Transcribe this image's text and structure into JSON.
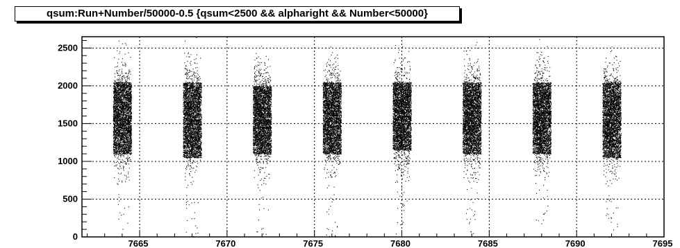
{
  "chart_data": {
    "type": "scatter",
    "title": "qsum:Run+Number/50000-0.5 {qsum<2500 && alpharight && Number<50000}",
    "xlabel": "",
    "ylabel": "",
    "xlim": [
      7661.7,
      7695
    ],
    "ylim": [
      0,
      2650
    ],
    "grid": true,
    "x_ticks": [
      7665,
      7670,
      7675,
      7680,
      7685,
      7690,
      7695
    ],
    "y_ticks": [
      0,
      500,
      1000,
      1500,
      2000,
      2500
    ],
    "x_tick_labels": [
      "7665",
      "7670",
      "7675",
      "7680",
      "7685",
      "7690",
      "7695"
    ],
    "y_tick_labels": [
      "0",
      "500",
      "1000",
      "1500",
      "2000",
      "2500"
    ],
    "marker_color": "#000000",
    "series": [
      {
        "clusters": [
          {
            "x_min": 7663.5,
            "x_max": 7664.5,
            "y_core_min": 1100,
            "y_core_max": 2050,
            "y_center": 1600
          },
          {
            "x_min": 7667.5,
            "x_max": 7668.5,
            "y_core_min": 1050,
            "y_core_max": 2050,
            "y_center": 1600
          },
          {
            "x_min": 7671.5,
            "x_max": 7672.5,
            "y_core_min": 1100,
            "y_core_max": 2000,
            "y_center": 1600
          },
          {
            "x_min": 7675.5,
            "x_max": 7676.5,
            "y_core_min": 1100,
            "y_core_max": 2050,
            "y_center": 1600
          },
          {
            "x_min": 7679.5,
            "x_max": 7680.5,
            "y_core_min": 1150,
            "y_core_max": 2050,
            "y_center": 1600
          },
          {
            "x_min": 7683.5,
            "x_max": 7684.5,
            "y_core_min": 1100,
            "y_core_max": 2050,
            "y_center": 1600
          },
          {
            "x_min": 7687.5,
            "x_max": 7688.5,
            "y_core_min": 1100,
            "y_core_max": 2050,
            "y_center": 1600
          },
          {
            "x_min": 7691.5,
            "x_max": 7692.5,
            "y_core_min": 1050,
            "y_core_max": 2050,
            "y_center": 1600
          }
        ]
      }
    ]
  }
}
